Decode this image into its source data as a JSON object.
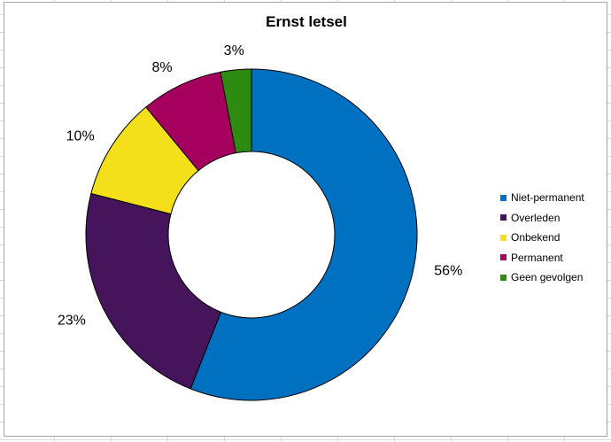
{
  "chart_data": {
    "type": "pie",
    "donut": true,
    "title": "Ernst letsel",
    "categories": [
      "Niet-permanent",
      "Overleden",
      "Onbekend",
      "Permanent",
      "Geen gevolgen"
    ],
    "values": [
      56,
      23,
      10,
      8,
      3
    ],
    "value_labels": [
      "56%",
      "23%",
      "10%",
      "8%",
      "3%"
    ],
    "colors": [
      "#0070c0",
      "#45145a",
      "#f4e01a",
      "#a5005e",
      "#2e8b12"
    ],
    "legend_position": "right",
    "start_angle_deg": 0,
    "direction": "clockwise"
  }
}
